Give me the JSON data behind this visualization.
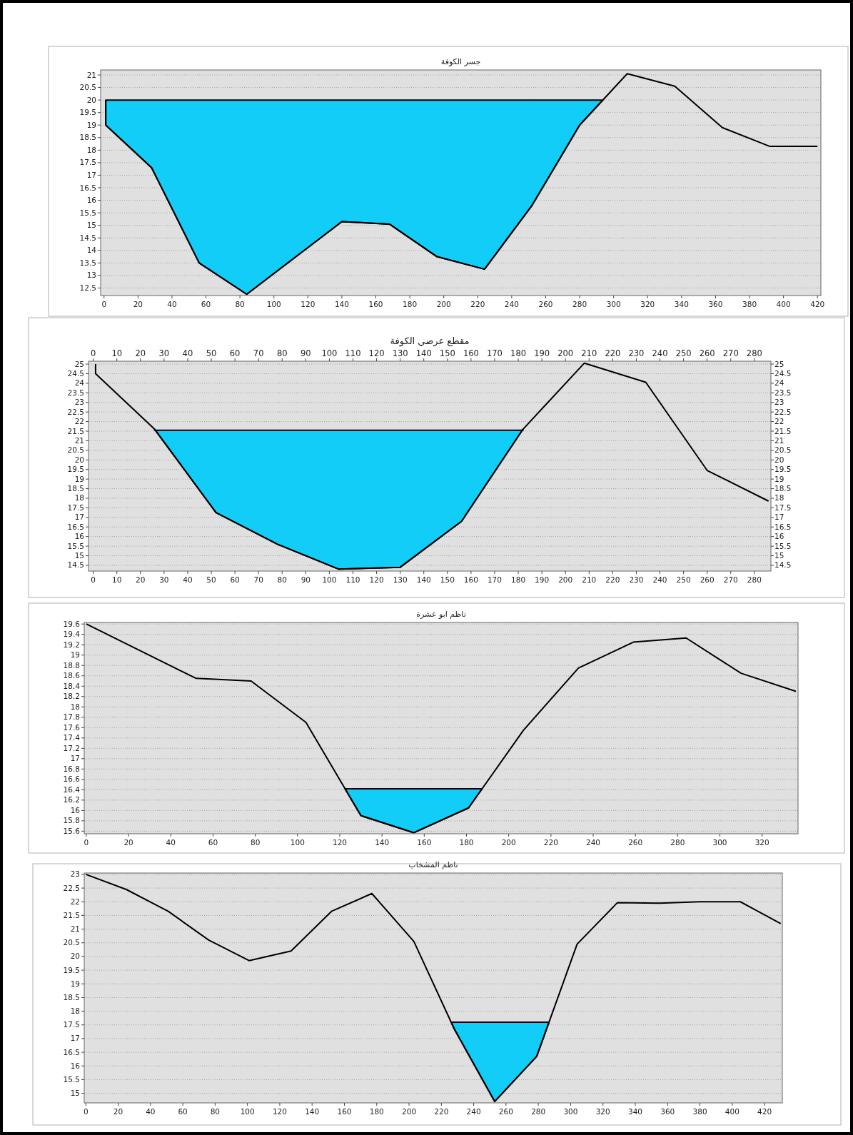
{
  "chart_data": [
    {
      "type": "line",
      "title": "جسر الكوفة",
      "xlim": [
        -2,
        422
      ],
      "xticks": [
        0,
        20,
        40,
        60,
        80,
        100,
        120,
        140,
        160,
        180,
        200,
        220,
        240,
        260,
        280,
        300,
        320,
        340,
        360,
        380,
        400,
        420
      ],
      "ylim": [
        12.2,
        21.2
      ],
      "yticks": [
        12.5,
        13,
        13.5,
        14,
        14.5,
        15,
        15.5,
        16,
        16.5,
        17,
        17.5,
        18,
        18.5,
        19,
        19.5,
        20,
        20.5,
        21
      ],
      "grid": "y",
      "series": [
        {
          "type": "area",
          "color": "#12cdf7",
          "x": [
            1,
            28,
            56,
            84,
            140,
            168,
            196,
            224,
            252,
            280,
            293.7
          ],
          "values": [
            20,
            20,
            20,
            20,
            20,
            20,
            20,
            20,
            20,
            20,
            20
          ]
        },
        {
          "type": "line",
          "color": "#000000",
          "x": [
            1,
            1,
            28,
            56,
            84,
            140,
            168,
            196,
            224,
            252,
            280,
            308,
            336,
            364,
            392,
            420
          ],
          "values": [
            20,
            19,
            17.3,
            13.5,
            12.25,
            15.15,
            15.05,
            13.75,
            13.25,
            15.8,
            19,
            21.05,
            20.55,
            18.9,
            18.15,
            18.15
          ]
        }
      ]
    },
    {
      "type": "line",
      "title": "مقطع عرضي الكوفة",
      "xlim": [
        -2,
        287
      ],
      "xticks": [
        0,
        10,
        20,
        30,
        40,
        50,
        60,
        70,
        80,
        90,
        100,
        110,
        120,
        130,
        140,
        150,
        160,
        170,
        180,
        190,
        200,
        210,
        220,
        230,
        240,
        250,
        260,
        270,
        280
      ],
      "x2lim": [
        -2,
        287
      ],
      "x2ticks": [
        0,
        10,
        20,
        30,
        40,
        50,
        60,
        70,
        80,
        90,
        100,
        110,
        120,
        130,
        140,
        150,
        160,
        170,
        180,
        190,
        200,
        210,
        220,
        230,
        240,
        250,
        260,
        270,
        280
      ],
      "ylim": [
        14.2,
        25.15
      ],
      "yticks": [
        14.5,
        15,
        15.5,
        16,
        16.5,
        17,
        17.5,
        18,
        18.5,
        19,
        19.5,
        20,
        20.5,
        21,
        21.5,
        22,
        22.5,
        23,
        23.5,
        24,
        24.5,
        25
      ],
      "y2lim": [
        14.2,
        25.15
      ],
      "y2ticks": [
        14.5,
        15,
        15.5,
        16,
        16.5,
        17,
        17.5,
        18,
        18.5,
        19,
        19.5,
        20,
        20.5,
        21,
        21.5,
        22,
        22.5,
        23,
        23.5,
        24,
        24.5,
        25
      ],
      "grid": "y",
      "series": [
        {
          "type": "area",
          "color": "#12cdf7",
          "x": [
            26,
            52,
            78,
            104,
            130,
            156,
            182
          ],
          "values": [
            21.55,
            21.55,
            21.55,
            21.55,
            21.55,
            21.55,
            21.55
          ]
        },
        {
          "type": "line",
          "color": "#000000",
          "x": [
            1,
            1,
            26,
            52,
            78,
            104,
            130,
            156,
            182,
            208,
            234,
            260,
            286
          ],
          "values": [
            25,
            24.5,
            21.6,
            17.25,
            15.6,
            14.3,
            14.4,
            16.8,
            21.6,
            25.05,
            24.05,
            19.45,
            17.85
          ]
        }
      ]
    },
    {
      "type": "line",
      "title": "ناظم ابو عشرة",
      "xlim": [
        -1,
        337
      ],
      "xticks": [
        0,
        20,
        40,
        60,
        80,
        100,
        120,
        140,
        160,
        180,
        200,
        220,
        240,
        260,
        280,
        300,
        320
      ],
      "ylim": [
        15.55,
        19.63
      ],
      "yticks": [
        15.6,
        15.8,
        16,
        16.2,
        16.4,
        16.6,
        16.8,
        17,
        17.2,
        17.4,
        17.6,
        17.8,
        18,
        18.2,
        18.4,
        18.6,
        18.8,
        19,
        19.2,
        19.4,
        19.6
      ],
      "grid": "y",
      "series": [
        {
          "type": "area",
          "color": "#12cdf7",
          "x": [
            122.5,
            130,
            155,
            181,
            187.4
          ],
          "values": [
            16.42,
            16.42,
            16.42,
            16.42,
            16.42
          ]
        },
        {
          "type": "line",
          "color": "#000000",
          "x": [
            0,
            52,
            78,
            104,
            130,
            155,
            181,
            207,
            233,
            259,
            284,
            310,
            336
          ],
          "values": [
            19.6,
            18.55,
            18.5,
            17.7,
            15.9,
            15.57,
            16.05,
            17.55,
            18.75,
            19.25,
            19.33,
            18.65,
            18.3
          ]
        }
      ]
    },
    {
      "type": "line",
      "title": "ناظم المشخاب",
      "xlim": [
        -1,
        431
      ],
      "xticks": [
        0,
        20,
        40,
        60,
        80,
        100,
        120,
        140,
        160,
        180,
        200,
        220,
        240,
        260,
        280,
        300,
        320,
        340,
        360,
        380,
        400,
        420
      ],
      "ylim": [
        14.65,
        23.05
      ],
      "yticks": [
        15,
        15.5,
        16,
        16.5,
        17,
        17.5,
        18,
        18.5,
        19,
        19.5,
        20,
        20.5,
        21,
        21.5,
        22,
        22.5,
        23
      ],
      "grid": "y",
      "series": [
        {
          "type": "area",
          "color": "#12cdf7",
          "x": [
            226,
            228,
            253,
            279,
            286.6
          ],
          "values": [
            17.6,
            17.6,
            17.6,
            17.6,
            17.6
          ]
        },
        {
          "type": "line",
          "color": "#000000",
          "x": [
            0,
            25,
            51,
            76,
            101,
            127,
            152,
            177,
            203,
            228,
            253,
            279,
            304,
            329,
            355,
            380,
            405,
            430
          ],
          "values": [
            23,
            22.45,
            21.65,
            20.6,
            19.85,
            20.2,
            21.65,
            22.3,
            20.55,
            17.35,
            14.7,
            16.35,
            20.45,
            21.97,
            21.95,
            22,
            22,
            21.2
          ]
        }
      ]
    }
  ]
}
